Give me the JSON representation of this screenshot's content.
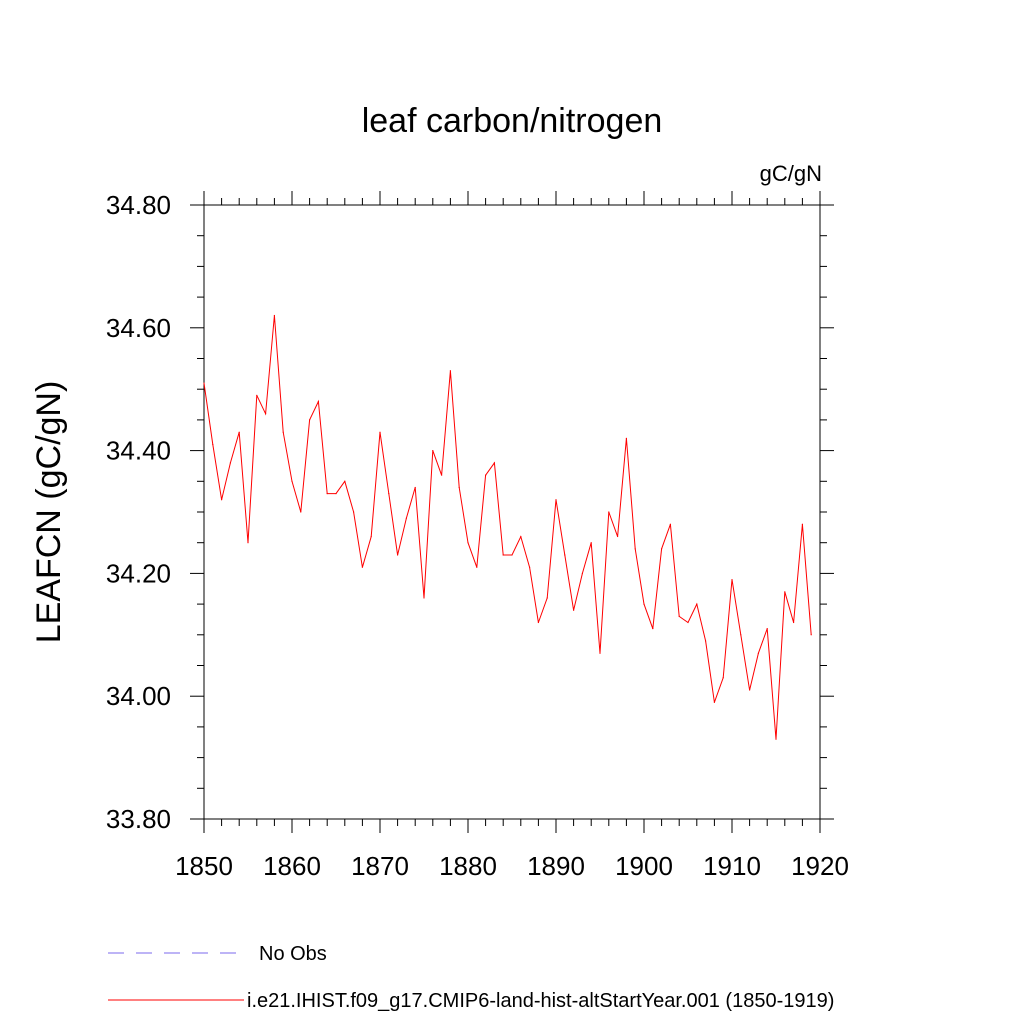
{
  "chart_data": {
    "type": "line",
    "title": "leaf carbon/nitrogen",
    "units": "gC/gN",
    "ylabel": "LEAFCN  (gC/gN)",
    "xlabel": "",
    "xlim": [
      1850,
      1920
    ],
    "ylim": [
      33.8,
      34.8
    ],
    "x_ticks": [
      1850,
      1860,
      1870,
      1880,
      1890,
      1900,
      1910,
      1920
    ],
    "y_ticks": [
      "33.80",
      "34.00",
      "34.20",
      "34.40",
      "34.60",
      "34.80"
    ],
    "grid": false,
    "legend_position": "bottom-left",
    "series": [
      {
        "name": "No Obs",
        "color": "#7b68ee",
        "style": "dashed",
        "x": [],
        "y": []
      },
      {
        "name": "i.e21.IHIST.f09_g17.CMIP6-land-hist-altStartYear.001 (1850-1919)",
        "color": "#ff0000",
        "style": "solid",
        "x": [
          1850,
          1851,
          1852,
          1853,
          1854,
          1855,
          1856,
          1857,
          1858,
          1859,
          1860,
          1861,
          1862,
          1863,
          1864,
          1865,
          1866,
          1867,
          1868,
          1869,
          1870,
          1871,
          1872,
          1873,
          1874,
          1875,
          1876,
          1877,
          1878,
          1879,
          1880,
          1881,
          1882,
          1883,
          1884,
          1885,
          1886,
          1887,
          1888,
          1889,
          1890,
          1891,
          1892,
          1893,
          1894,
          1895,
          1896,
          1897,
          1898,
          1899,
          1900,
          1901,
          1902,
          1903,
          1904,
          1905,
          1906,
          1907,
          1908,
          1909,
          1910,
          1911,
          1912,
          1913,
          1914,
          1915,
          1916,
          1917,
          1918,
          1919
        ],
        "y": [
          34.51,
          34.41,
          34.32,
          34.38,
          34.43,
          34.25,
          34.49,
          34.46,
          34.62,
          34.43,
          34.35,
          34.3,
          34.45,
          34.48,
          34.33,
          34.33,
          34.35,
          34.3,
          34.21,
          34.26,
          34.43,
          34.33,
          34.23,
          34.29,
          34.34,
          34.16,
          34.4,
          34.36,
          34.53,
          34.34,
          34.25,
          34.21,
          34.36,
          34.38,
          34.23,
          34.23,
          34.26,
          34.21,
          34.12,
          34.16,
          34.32,
          34.23,
          34.14,
          34.2,
          34.25,
          34.07,
          34.3,
          34.26,
          34.42,
          34.24,
          34.15,
          34.11,
          34.24,
          34.28,
          34.13,
          34.12,
          34.15,
          34.09,
          33.99,
          34.03,
          34.19,
          34.1,
          34.01,
          34.07,
          34.11,
          33.93,
          34.17,
          34.12,
          34.28,
          34.1
        ]
      }
    ]
  }
}
